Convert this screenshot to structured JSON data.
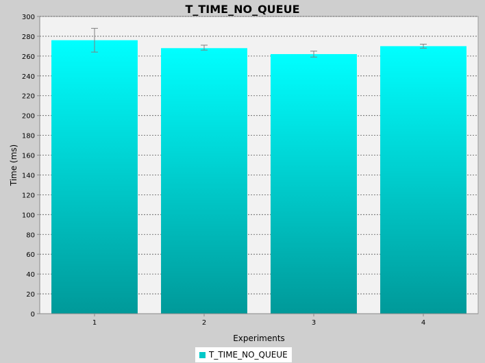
{
  "chart_data": {
    "type": "bar",
    "title": "T_TIME_NO_QUEUE",
    "xlabel": "Experiments",
    "ylabel": "Time (ms)",
    "categories": [
      "1",
      "2",
      "3",
      "4"
    ],
    "series": [
      {
        "name": "T_TIME_NO_QUEUE",
        "values": [
          276,
          268,
          262,
          270
        ],
        "error_low": [
          264,
          266,
          259,
          268
        ],
        "error_high": [
          288,
          271,
          265,
          272
        ]
      }
    ],
    "ylim": [
      0,
      300
    ],
    "yticks": [
      0,
      20,
      40,
      60,
      80,
      100,
      120,
      140,
      160,
      180,
      200,
      220,
      240,
      260,
      280,
      300
    ],
    "grid": true,
    "legend_position": "bottom",
    "colors": {
      "bar_top": "#00ffff",
      "bar_bottom": "#009999",
      "plot_background": "#f2f2f2",
      "page_background": "#cfcfcf",
      "grid": "#555555",
      "error_bar": "#808080",
      "legend_swatch": "#00c8c8"
    }
  }
}
